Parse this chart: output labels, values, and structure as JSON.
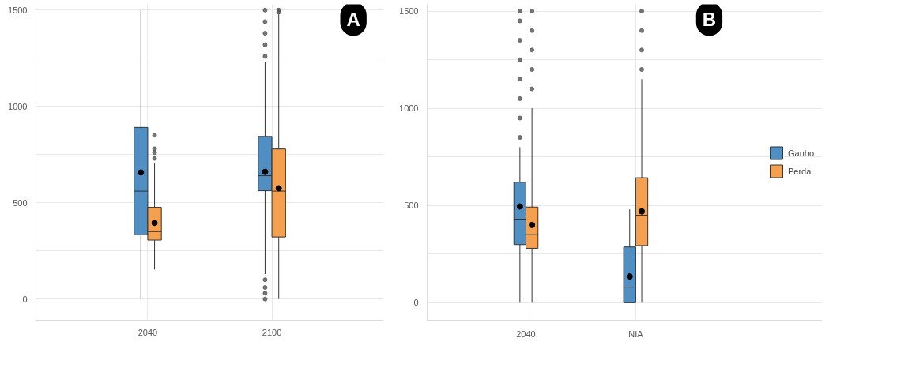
{
  "chart_data": [
    {
      "type": "box",
      "categories": [
        "2040",
        "2100"
      ],
      "ylim": [
        -110,
        1530
      ],
      "yticks": [
        0,
        {
          "value": 250,
          "label": null
        },
        500,
        {
          "value": 750,
          "label": null
        },
        1000,
        {
          "value": 1250,
          "label": null
        },
        1500
      ],
      "grid": true,
      "legend": false,
      "annotations": [
        "A"
      ],
      "series": [
        {
          "color": "#4f8fc4",
          "boxes": [
            {
              "low": 0,
              "q1": 333,
              "median": 560,
              "q3": 891,
              "high": 1500,
              "mean": 657
            },
            {
              "low": 130,
              "q1": 562,
              "median": 640,
              "q3": 844,
              "high": 1230,
              "mean": 660,
              "outliers": [
                0,
                30,
                60,
                100,
                1260,
                1320,
                1380,
                1440,
                1500
              ]
            }
          ]
        },
        {
          "color": "#f4a04f",
          "boxes": [
            {
              "low": 153,
              "q1": 306,
              "median": 350,
              "q3": 476,
              "high": 706,
              "mean": 395,
              "outliers": [
                730,
                760,
                780,
                850
              ]
            },
            {
              "low": 0,
              "q1": 322,
              "median": 560,
              "q3": 779,
              "high": 1480,
              "mean": 575,
              "outliers": [
                1490,
                1500
              ]
            }
          ]
        }
      ]
    },
    {
      "type": "box",
      "categories": [
        "2040",
        "NIA"
      ],
      "ylim": [
        -90,
        1535
      ],
      "yticks": [
        0,
        {
          "value": 250,
          "label": null
        },
        500,
        {
          "value": 750,
          "label": null
        },
        1000,
        {
          "value": 1250,
          "label": null
        },
        1500
      ],
      "grid": true,
      "legend": "right",
      "annotations": [
        "B"
      ],
      "series": [
        {
          "name": "Ganho",
          "color": "#4f8fc4",
          "boxes": [
            {
              "low": 0,
              "q1": 299,
              "median": 430,
              "q3": 620,
              "high": 800,
              "mean": 495,
              "outliers": [
                850,
                950,
                1050,
                1150,
                1250,
                1350,
                1450,
                1500
              ]
            },
            {
              "low": 0,
              "q1": 0,
              "median": 80,
              "q3": 287,
              "high": 480,
              "mean": 135
            }
          ]
        },
        {
          "name": "Perda",
          "color": "#f4a04f",
          "boxes": [
            {
              "low": 0,
              "q1": 280,
              "median": 350,
              "q3": 492,
              "high": 1000,
              "mean": 400,
              "outliers": [
                1100,
                1200,
                1300,
                1400,
                1500
              ]
            },
            {
              "low": 0,
              "q1": 294,
              "median": 450,
              "q3": 643,
              "high": 1150,
              "mean": 470,
              "outliers": [
                1200,
                1300,
                1400,
                1500
              ]
            }
          ]
        }
      ]
    }
  ]
}
